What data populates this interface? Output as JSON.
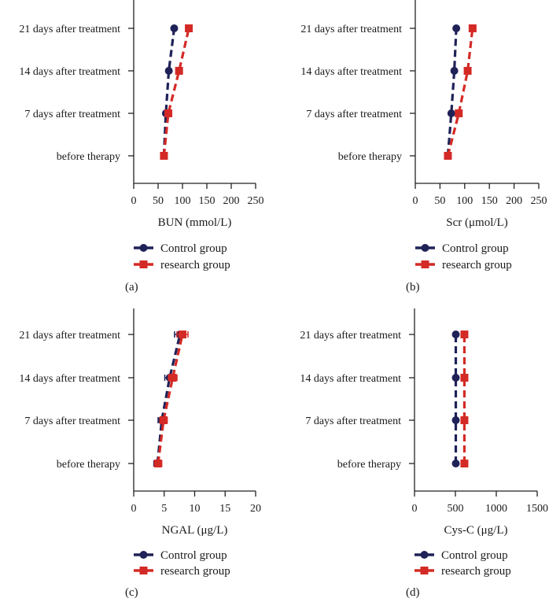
{
  "colors": {
    "control": "#1f2257",
    "research": "#d42a26",
    "axis": "#222222"
  },
  "chart_data": [
    {
      "panel": "(a)",
      "type": "line",
      "orientation": "horizontal",
      "xlabel": "BUN (mmol/L)",
      "xlim": [
        0,
        250
      ],
      "xticks": [
        0,
        50,
        100,
        150,
        200,
        250
      ],
      "categories": [
        "before therapy",
        "7 days after treatment",
        "14 days after treatment",
        "21 days after treatment"
      ],
      "series": [
        {
          "name": "Control group",
          "values": [
            62,
            66,
            72,
            83
          ],
          "errors": [
            2,
            2,
            3,
            3
          ]
        },
        {
          "name": "research group",
          "values": [
            62,
            71,
            93,
            113
          ],
          "errors": [
            2,
            2,
            3,
            4
          ]
        }
      ],
      "legend": [
        "Control group",
        "research group"
      ]
    },
    {
      "panel": "(b)",
      "type": "line",
      "orientation": "horizontal",
      "xlabel": "Scr (μmol/L)",
      "xlim": [
        0,
        250
      ],
      "xticks": [
        0,
        50,
        100,
        150,
        200,
        250
      ],
      "categories": [
        "before therapy",
        "7 days after treatment",
        "14 days after treatment",
        "21 days after treatment"
      ],
      "series": [
        {
          "name": "Control group",
          "values": [
            66,
            73,
            79,
            83
          ],
          "errors": [
            2,
            2,
            2,
            2
          ]
        },
        {
          "name": "research group",
          "values": [
            66,
            88,
            106,
            116
          ],
          "errors": [
            2,
            3,
            3,
            3
          ]
        }
      ],
      "legend": [
        "Control group",
        "research group"
      ]
    },
    {
      "panel": "(c)",
      "type": "line",
      "orientation": "horizontal",
      "xlabel": "NGAL (μg/L)",
      "xlim": [
        0,
        20
      ],
      "xticks": [
        0,
        5,
        10,
        15,
        20
      ],
      "categories": [
        "before therapy",
        "7 days after treatment",
        "14 days after treatment",
        "21 days after treatment"
      ],
      "series": [
        {
          "name": "Control group",
          "values": [
            3.9,
            4.6,
            5.9,
            7.6
          ],
          "errors": [
            0.6,
            0.6,
            0.8,
            0.9
          ]
        },
        {
          "name": "research group",
          "values": [
            4.0,
            4.9,
            6.4,
            8.0
          ],
          "errors": [
            0.6,
            0.6,
            0.7,
            0.9
          ]
        }
      ],
      "legend": [
        "Control group",
        "research group"
      ]
    },
    {
      "panel": "(d)",
      "type": "line",
      "orientation": "horizontal",
      "xlabel": "Cys-C (μg/L)",
      "xlim": [
        0,
        1500
      ],
      "xticks": [
        0,
        500,
        1000,
        1500
      ],
      "categories": [
        "before therapy",
        "7 days after treatment",
        "14 days after treatment",
        "21 days after treatment"
      ],
      "series": [
        {
          "name": "Control group",
          "values": [
            505,
            505,
            505,
            505
          ],
          "errors": [
            15,
            15,
            15,
            15
          ]
        },
        {
          "name": "research group",
          "values": [
            610,
            610,
            610,
            610
          ],
          "errors": [
            15,
            15,
            15,
            15
          ]
        }
      ],
      "legend": [
        "Control group",
        "research group"
      ]
    }
  ]
}
